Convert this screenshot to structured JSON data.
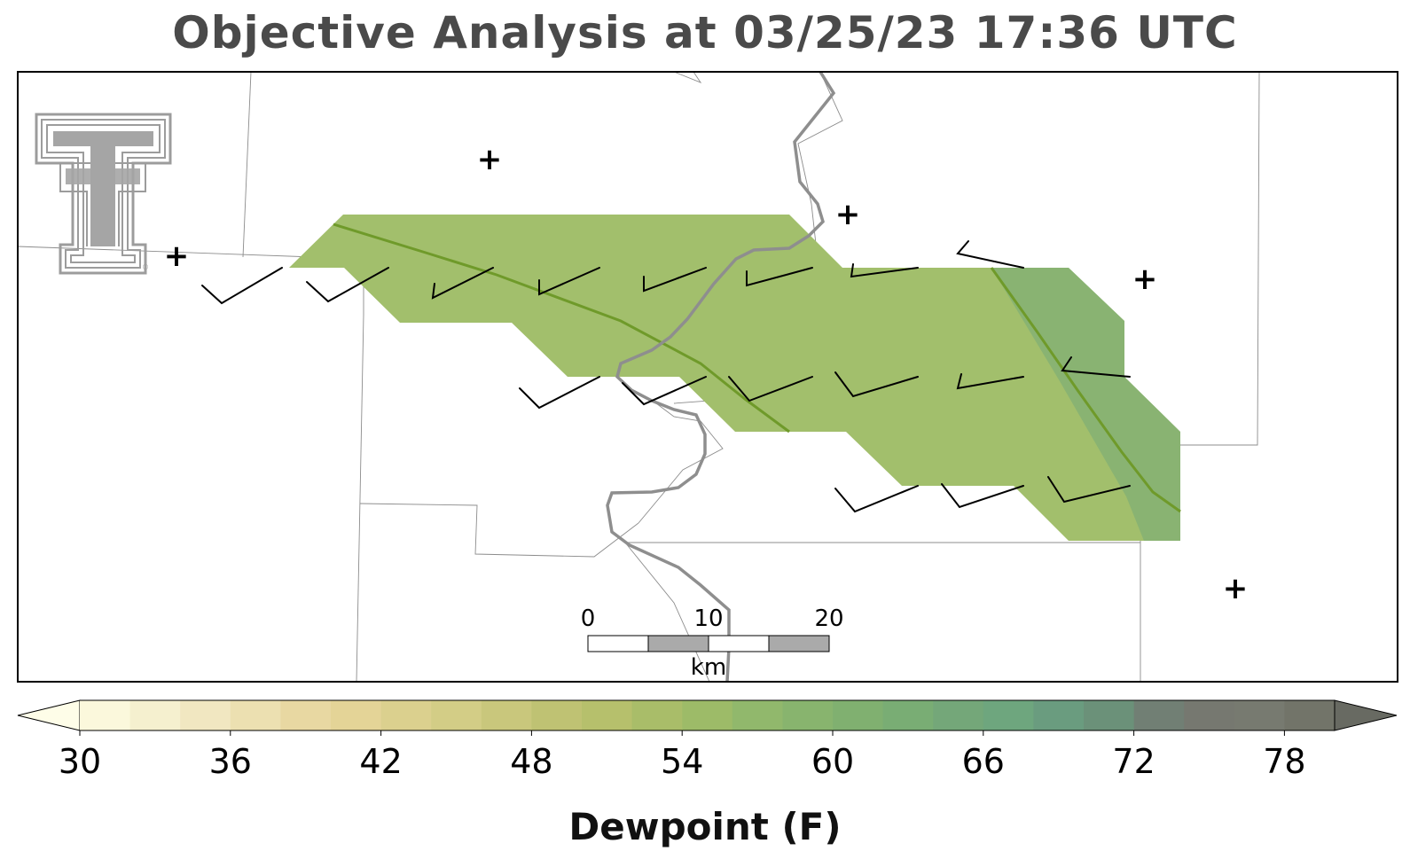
{
  "title": "Objective Analysis at 03/25/23 17:36 UTC",
  "logo": {
    "icon": "texas-tech-double-t-logo",
    "text": "TT"
  },
  "colorbar": {
    "label": "Dewpoint (F)",
    "ticks": [
      "30",
      "36",
      "42",
      "48",
      "54",
      "60",
      "66",
      "72",
      "78"
    ],
    "min": 30,
    "max": 80,
    "step": 2,
    "colors": [
      "#fbf8dc",
      "#f5f0cf",
      "#f1e7c1",
      "#ece0b1",
      "#e8d8a2",
      "#e4d497",
      "#dbd08e",
      "#d3cd86",
      "#c9c77c",
      "#bfc273",
      "#b6c06c",
      "#a9bd69",
      "#9dbb68",
      "#91b86c",
      "#88b46e",
      "#80b070",
      "#79ad74",
      "#74a779",
      "#6ea67e",
      "#6a9c7f",
      "#6b9179",
      "#717f74",
      "#767870",
      "#777a70",
      "#727469"
    ],
    "under_color": "#fefde8",
    "over_color": "#686a62"
  },
  "scale_bar": {
    "ticks": [
      "0",
      "10",
      "20"
    ],
    "unit": "km"
  },
  "stations": [
    {
      "type": "missing",
      "marker": "+"
    },
    {
      "type": "missing",
      "marker": "+"
    },
    {
      "type": "missing",
      "marker": "+"
    },
    {
      "type": "missing",
      "marker": "+"
    },
    {
      "type": "missing",
      "marker": "+"
    }
  ],
  "field": {
    "fill_color": "#a2bf6c",
    "contour_color": "#6f9a2a"
  }
}
